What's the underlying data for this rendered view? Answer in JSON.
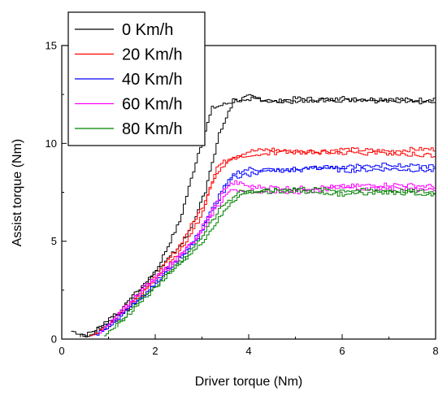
{
  "chart_data": {
    "type": "line",
    "title": "",
    "xlabel": "Driver torque (Nm)",
    "ylabel": "Assist torque (Nm)",
    "xlim": [
      0,
      8
    ],
    "ylim": [
      0,
      15
    ],
    "x_ticks": [
      "0",
      "2",
      "4",
      "6",
      "8"
    ],
    "y_ticks": [
      "0",
      "5",
      "10",
      "15"
    ],
    "grid": false,
    "legend_position": "top-left",
    "series": [
      {
        "name": "0 Km/h",
        "color": "#000000",
        "loading": [
          [
            0.2,
            0.4
          ],
          [
            0.5,
            0.2
          ],
          [
            1.0,
            0.9
          ],
          [
            1.5,
            2.0
          ],
          [
            2.0,
            3.5
          ],
          [
            2.5,
            6.0
          ],
          [
            2.9,
            9.5
          ],
          [
            3.2,
            11.8
          ],
          [
            3.6,
            12.1
          ],
          [
            4.0,
            12.4
          ],
          [
            4.5,
            12.1
          ],
          [
            5.0,
            12.3
          ],
          [
            6.0,
            12.2
          ],
          [
            7.0,
            12.3
          ],
          [
            7.5,
            12.2
          ],
          [
            8.0,
            12.3
          ]
        ],
        "unloading": [
          [
            8.0,
            12.1
          ],
          [
            7.0,
            12.1
          ],
          [
            6.0,
            12.3
          ],
          [
            5.0,
            12.1
          ],
          [
            4.2,
            12.3
          ],
          [
            3.7,
            12.2
          ],
          [
            3.4,
            10.5
          ],
          [
            3.1,
            7.5
          ],
          [
            2.7,
            5.2
          ],
          [
            2.2,
            3.8
          ],
          [
            1.7,
            2.6
          ],
          [
            1.2,
            1.3
          ],
          [
            0.7,
            0.3
          ],
          [
            0.4,
            0.1
          ]
        ]
      },
      {
        "name": "20 Km/h",
        "color": "#ff0000",
        "loading": [
          [
            0.6,
            0.1
          ],
          [
            1.0,
            0.8
          ],
          [
            1.5,
            1.9
          ],
          [
            2.0,
            3.2
          ],
          [
            2.5,
            4.8
          ],
          [
            3.0,
            6.8
          ],
          [
            3.3,
            8.8
          ],
          [
            3.6,
            9.3
          ],
          [
            4.0,
            9.6
          ],
          [
            4.5,
            9.7
          ],
          [
            5.0,
            9.5
          ],
          [
            6.0,
            9.7
          ],
          [
            7.0,
            9.6
          ],
          [
            7.5,
            9.7
          ],
          [
            8.0,
            9.7
          ]
        ],
        "unloading": [
          [
            8.0,
            9.4
          ],
          [
            7.0,
            9.5
          ],
          [
            6.0,
            9.5
          ],
          [
            5.0,
            9.6
          ],
          [
            4.0,
            9.4
          ],
          [
            3.6,
            9.2
          ],
          [
            3.3,
            8.3
          ],
          [
            3.0,
            6.2
          ],
          [
            2.5,
            4.3
          ],
          [
            2.0,
            2.9
          ],
          [
            1.5,
            1.7
          ],
          [
            1.0,
            0.6
          ],
          [
            0.7,
            0.2
          ]
        ]
      },
      {
        "name": "40 Km/h",
        "color": "#0000ff",
        "loading": [
          [
            0.7,
            0.2
          ],
          [
            1.2,
            1.1
          ],
          [
            1.7,
            2.2
          ],
          [
            2.2,
            3.4
          ],
          [
            2.7,
            4.6
          ],
          [
            3.1,
            6.2
          ],
          [
            3.4,
            7.6
          ],
          [
            3.7,
            8.5
          ],
          [
            4.0,
            8.7
          ],
          [
            5.0,
            8.6
          ],
          [
            5.5,
            8.8
          ],
          [
            6.0,
            8.6
          ],
          [
            7.0,
            8.7
          ],
          [
            8.0,
            8.6
          ]
        ],
        "unloading": [
          [
            8.0,
            8.8
          ],
          [
            7.0,
            8.9
          ],
          [
            6.0,
            8.8
          ],
          [
            5.0,
            8.7
          ],
          [
            4.0,
            8.4
          ],
          [
            3.7,
            8.3
          ],
          [
            3.3,
            6.8
          ],
          [
            2.9,
            5.0
          ],
          [
            2.4,
            3.8
          ],
          [
            1.9,
            2.5
          ],
          [
            1.4,
            1.4
          ],
          [
            0.9,
            0.4
          ]
        ]
      },
      {
        "name": "60 Km/h",
        "color": "#ff00ff",
        "loading": [
          [
            0.8,
            0.3
          ],
          [
            1.2,
            1.3
          ],
          [
            1.6,
            2.3
          ],
          [
            2.0,
            3.2
          ],
          [
            2.4,
            4.0
          ],
          [
            2.8,
            5.0
          ],
          [
            3.2,
            6.6
          ],
          [
            3.5,
            7.8
          ],
          [
            3.7,
            8.0
          ],
          [
            4.0,
            7.8
          ],
          [
            5.0,
            7.7
          ],
          [
            6.0,
            7.8
          ],
          [
            7.0,
            7.9
          ],
          [
            8.0,
            7.8
          ]
        ],
        "unloading": [
          [
            8.0,
            7.6
          ],
          [
            7.0,
            7.7
          ],
          [
            6.0,
            7.7
          ],
          [
            5.0,
            7.5
          ],
          [
            4.0,
            7.6
          ],
          [
            3.6,
            7.6
          ],
          [
            3.2,
            6.2
          ],
          [
            2.8,
            4.8
          ],
          [
            2.3,
            3.6
          ],
          [
            1.8,
            2.7
          ],
          [
            1.4,
            1.6
          ],
          [
            1.0,
            0.7
          ]
        ]
      },
      {
        "name": "80 Km/h",
        "color": "#008000",
        "loading": [
          [
            0.9,
            0.2
          ],
          [
            1.3,
            1.1
          ],
          [
            1.7,
            2.1
          ],
          [
            2.1,
            3.0
          ],
          [
            2.5,
            3.9
          ],
          [
            2.9,
            4.7
          ],
          [
            3.3,
            6.0
          ],
          [
            3.6,
            7.0
          ],
          [
            3.9,
            7.5
          ],
          [
            4.5,
            7.6
          ],
          [
            5.0,
            7.7
          ],
          [
            6.0,
            7.6
          ],
          [
            7.0,
            7.6
          ],
          [
            8.0,
            7.5
          ]
        ],
        "unloading": [
          [
            8.0,
            7.4
          ],
          [
            7.0,
            7.5
          ],
          [
            6.0,
            7.4
          ],
          [
            5.0,
            7.6
          ],
          [
            4.2,
            7.5
          ],
          [
            3.8,
            7.5
          ],
          [
            3.4,
            6.6
          ],
          [
            3.0,
            5.1
          ],
          [
            2.6,
            4.0
          ],
          [
            2.1,
            2.8
          ],
          [
            1.6,
            1.6
          ],
          [
            1.2,
            0.6
          ]
        ]
      }
    ]
  }
}
